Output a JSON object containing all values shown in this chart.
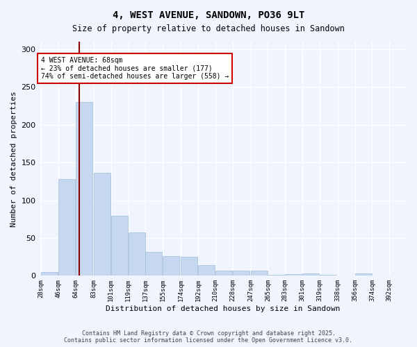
{
  "title": "4, WEST AVENUE, SANDOWN, PO36 9LT",
  "subtitle": "Size of property relative to detached houses in Sandown",
  "xlabel": "Distribution of detached houses by size in Sandown",
  "ylabel": "Number of detached properties",
  "footer_line1": "Contains HM Land Registry data © Crown copyright and database right 2025.",
  "footer_line2": "Contains public sector information licensed under the Open Government Licence v3.0.",
  "annotation_line1": "4 WEST AVENUE: 68sqm",
  "annotation_line2": "← 23% of detached houses are smaller (177)",
  "annotation_line3": "74% of semi-detached houses are larger (558) →",
  "bar_color": "#c5d8f0",
  "bar_edge_color": "#a0bcd8",
  "vline_color": "#8b0000",
  "vline_x": 68,
  "background_color": "#f0f4ff",
  "grid_color": "#ffffff",
  "categories": [
    28,
    46,
    64,
    83,
    101,
    119,
    137,
    155,
    174,
    192,
    210,
    228,
    247,
    265,
    283,
    301,
    319,
    338,
    356,
    374,
    392
  ],
  "bin_width": 18,
  "values": [
    5,
    128,
    230,
    136,
    79,
    57,
    32,
    26,
    25,
    14,
    7,
    7,
    7,
    1,
    2,
    3,
    1,
    0,
    3,
    0
  ],
  "ylim": [
    0,
    310
  ],
  "yticks": [
    0,
    50,
    100,
    150,
    200,
    250,
    300
  ]
}
